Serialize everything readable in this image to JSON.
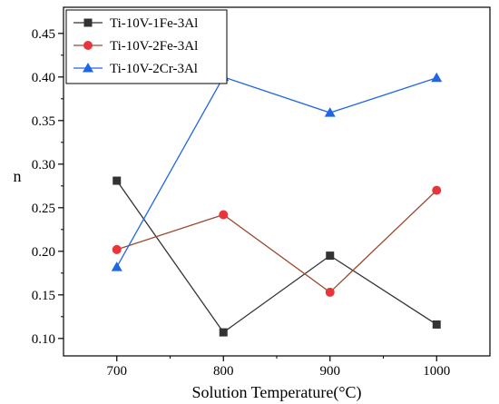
{
  "chart_data": {
    "type": "line",
    "xlabel": "Solution Temperature(°C)",
    "ylabel": "n",
    "x": [
      700,
      800,
      900,
      1000
    ],
    "xlim": [
      650,
      1050
    ],
    "ylim": [
      0.08,
      0.48
    ],
    "xticks": [
      "700",
      "800",
      "900",
      "1000"
    ],
    "yticks": [
      "0.10",
      "0.15",
      "0.20",
      "0.25",
      "0.30",
      "0.35",
      "0.40",
      "0.45"
    ],
    "legend_position": "top-left",
    "grid": false,
    "series": [
      {
        "name": "Ti-10V-1Fe-3Al",
        "marker": "square",
        "color": "#333333",
        "values": [
          0.281,
          0.107,
          0.195,
          0.116
        ]
      },
      {
        "name": "Ti-10V-2Fe-3Al",
        "marker": "circle",
        "color": "#e8343b",
        "line_color": "#9b4a30",
        "values": [
          0.202,
          0.242,
          0.153,
          0.27
        ]
      },
      {
        "name": "Ti-10V-2Cr-3Al",
        "marker": "triangle",
        "color": "#1f66e5",
        "values": [
          0.182,
          0.4,
          0.359,
          0.399
        ]
      }
    ]
  }
}
